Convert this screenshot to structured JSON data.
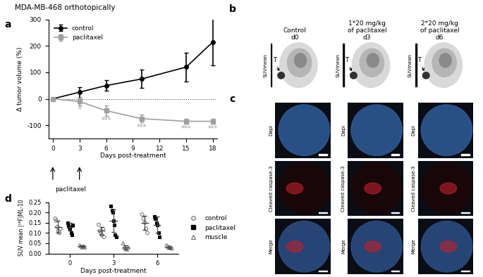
{
  "title": "MDA-MB-468 orthotopically",
  "panel_labels": [
    "a",
    "b",
    "c",
    "d"
  ],
  "chart_data": [
    {
      "type": "line",
      "x_label": "Days post-treatment",
      "y_label": "Δ tumor volume (%)",
      "x": [
        0,
        3,
        6,
        10,
        15,
        18
      ],
      "series": [
        {
          "name": "control",
          "color": "#000000",
          "marker": "circle",
          "values": [
            0,
            25,
            50,
            75,
            120,
            215
          ],
          "errors": [
            0,
            20,
            20,
            35,
            55,
            90
          ]
        },
        {
          "name": "paclitaxel",
          "color": "#a0a0a0",
          "marker": "square",
          "values": [
            0,
            -10,
            -45,
            -75,
            -85,
            -85
          ],
          "errors": [
            0,
            15,
            20,
            15,
            10,
            10
          ],
          "significance": [
            null,
            "*",
            "***",
            "***",
            "***",
            "***"
          ]
        }
      ],
      "baseline": 0,
      "xlim": [
        -0.5,
        18.5
      ],
      "xticks": [
        0,
        3,
        6,
        9,
        12,
        15,
        18
      ],
      "ylim": [
        -150,
        300
      ],
      "yticks": [
        -100,
        0,
        100,
        200,
        300
      ],
      "legend": "upper left",
      "annotations": [
        {
          "text": "paclitaxel",
          "x": [
            0,
            3
          ]
        }
      ]
    },
    {
      "type": "scatter",
      "x_label": "Days post-treatment",
      "y_label": "SUV mean |¹⁸F|ML-10",
      "categories": [
        "0",
        "3",
        "6"
      ],
      "series": [
        {
          "name": "control",
          "color": "#7f7f7f",
          "marker": "open-circle",
          "values": [
            [
              0.17,
              0.16,
              0.13,
              0.11,
              0.1,
              0.12
            ],
            [
              0.14,
              0.11,
              0.1,
              0.09,
              0.12,
              0.08
            ],
            [
              0.19,
              0.17,
              0.15,
              0.12,
              0.1
            ]
          ],
          "mean": [
            0.13,
            0.11,
            0.15
          ],
          "sd": [
            0.03,
            0.02,
            0.035
          ]
        },
        {
          "name": "paclitaxel",
          "color": "#000000",
          "marker": "square",
          "values": [
            [
              0.15,
              0.14,
              0.13,
              0.12,
              0.1,
              0.09,
              0.14
            ],
            [
              0.23,
              0.21,
              0.2,
              0.16,
              0.14,
              0.09,
              0.08
            ],
            [
              0.18,
              0.17,
              0.15,
              0.14,
              0.1,
              0.08
            ]
          ],
          "mean": [
            0.13,
            0.16,
            0.14
          ],
          "sd": [
            0.02,
            0.055,
            0.04
          ]
        },
        {
          "name": "muscle",
          "color": "#7f7f7f",
          "marker": "open-triangle",
          "values": [
            [
              0.04,
              0.035,
              0.03,
              0.035,
              0.03
            ],
            [
              0.05,
              0.03,
              0.025,
              0.02,
              0.03
            ],
            [
              0.04,
              0.035,
              0.03,
              0.03,
              0.025
            ]
          ],
          "mean": [
            0.035,
            0.03,
            0.03
          ],
          "sd": [
            0.005,
            0.01,
            0.006
          ]
        }
      ],
      "ylim": [
        0,
        0.25
      ],
      "yticks": [
        {
          "value": 0,
          "label": "0.00"
        },
        {
          "value": 0.05,
          "label": "0.05"
        },
        {
          "value": 0.1,
          "label": "0.10"
        },
        {
          "value": 0.15,
          "label": "0.15"
        },
        {
          "value": 0.2,
          "label": "0.20"
        },
        {
          "value": 0.25,
          "label": "0.25"
        }
      ],
      "legend": "right"
    }
  ],
  "images": {
    "pet": {
      "columns": [
        "Control\nd0",
        "1*20 mg/kg\nof paclitaxel\nd3",
        "2*20 mg/kg\nof paclitaxel\nd6"
      ],
      "axis_label": "SUVmean",
      "marker": "T"
    },
    "microscopy": {
      "rows": [
        "Dapi",
        "Cleaved caspase-3",
        "Merge"
      ]
    }
  }
}
